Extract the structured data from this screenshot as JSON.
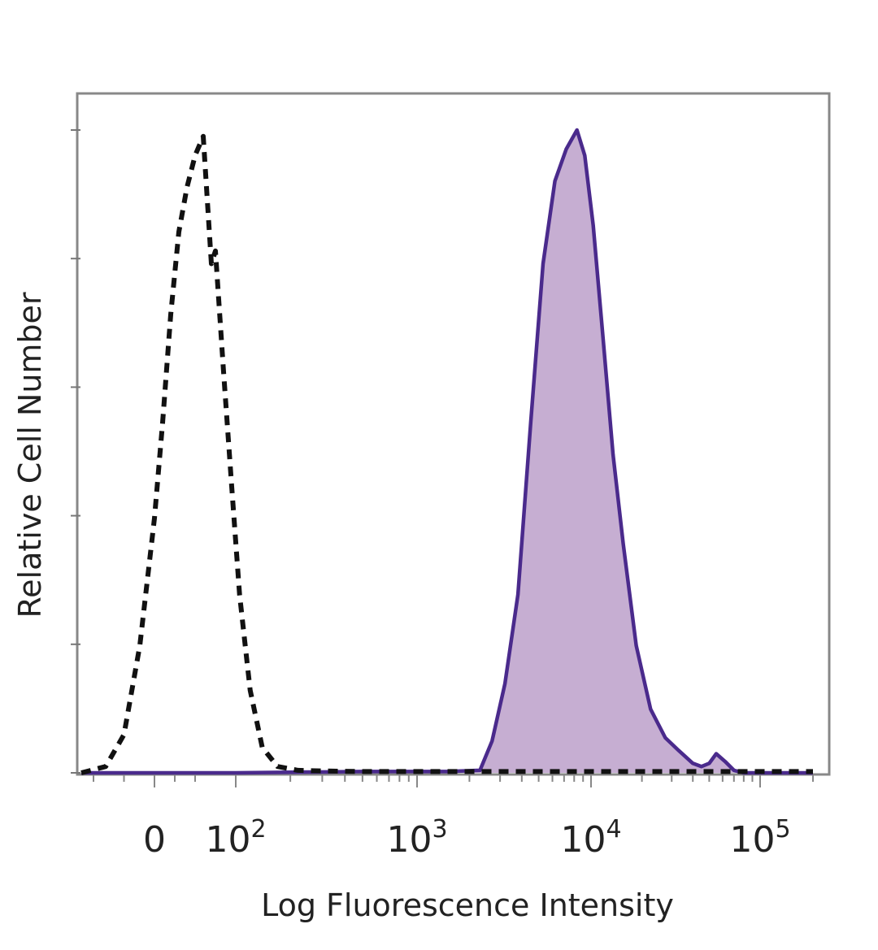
{
  "chart_data": {
    "type": "area",
    "title": "",
    "xlabel": "Log Fluorescence Intensity",
    "ylabel": "Relative Cell Number",
    "x_scale": "biexponential",
    "xlim": [
      -60,
      200000
    ],
    "ylim": [
      0,
      1.05
    ],
    "grid": false,
    "legend": "none",
    "x_ticks": [
      {
        "base": "0",
        "exp": "",
        "value": 0
      },
      {
        "base": "10",
        "exp": "2",
        "value": 100
      },
      {
        "base": "10",
        "exp": "3",
        "value": 1000
      },
      {
        "base": "10",
        "exp": "4",
        "value": 10000
      },
      {
        "base": "10",
        "exp": "5",
        "value": 100000
      }
    ],
    "colors": {
      "sample_line": "#4a2a8c",
      "sample_fill": "#c6aed2",
      "control_line": "#111111",
      "frame": "#888888"
    },
    "series": [
      {
        "style": "dashed",
        "filled": false,
        "color": "#111111",
        "x": [
          -60,
          -40,
          -25,
          -12,
          0,
          10,
          20,
          30,
          40,
          50,
          60,
          70,
          75,
          85,
          95,
          105,
          120,
          140,
          170,
          220,
          300,
          500,
          1000,
          5000,
          50000,
          200000
        ],
        "y": [
          0,
          0.01,
          0.06,
          0.2,
          0.4,
          0.55,
          0.72,
          0.85,
          0.92,
          0.97,
          1.0,
          0.8,
          0.82,
          0.63,
          0.45,
          0.28,
          0.13,
          0.04,
          0.01,
          0.004,
          0.003,
          0.002,
          0.002,
          0.002,
          0.002,
          0.002
        ]
      },
      {
        "style": "solid",
        "filled": true,
        "color": "#4a2a8c",
        "x": [
          -60,
          100,
          500,
          1500,
          2300,
          2700,
          3200,
          3800,
          4500,
          5300,
          6200,
          7200,
          8300,
          9200,
          10300,
          11800,
          13500,
          15500,
          18500,
          22500,
          27500,
          33000,
          40000,
          45000,
          50000,
          55000,
          62000,
          70000,
          80000,
          100000,
          200000
        ],
        "y": [
          0,
          0,
          0.002,
          0.002,
          0.004,
          0.05,
          0.14,
          0.28,
          0.55,
          0.8,
          0.93,
          0.98,
          1.01,
          0.97,
          0.86,
          0.68,
          0.5,
          0.36,
          0.2,
          0.1,
          0.055,
          0.035,
          0.015,
          0.01,
          0.015,
          0.03,
          0.018,
          0.004,
          0,
          0,
          0
        ]
      }
    ]
  }
}
